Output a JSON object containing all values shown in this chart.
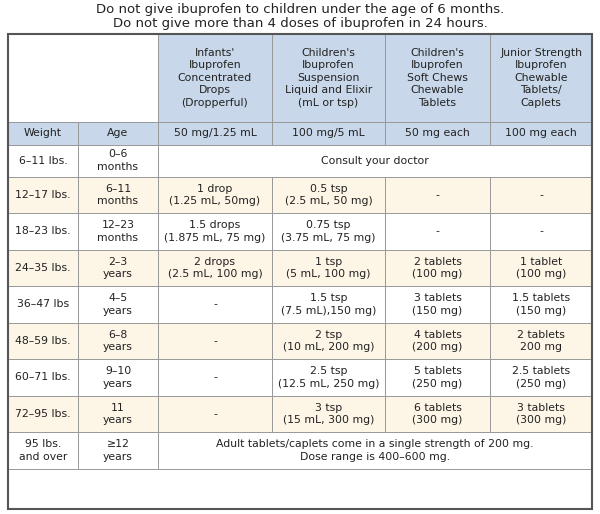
{
  "title_line1": "Do not give ibuprofen to children under the age of 6 months.",
  "title_line2": "Do not give more than 4 doses of ibuprofen in 24 hours.",
  "col_headers_top": [
    "Infants'\nIbuprofen\nConcentrated\nDrops\n(Dropperful)",
    "Children's\nIbuprofen\nSuspension\nLiquid and Elixir\n(mL or tsp)",
    "Children's\nIbuprofen\nSoft Chews\nChewable\nTablets",
    "Junior Strength\nIbuprofen\nChewable\nTablets/\nCaplets"
  ],
  "col_headers_sub": [
    "50 mg/1.25 mL",
    "100 mg/5 mL",
    "50 mg each",
    "100 mg each"
  ],
  "row_headers": [
    "Weight",
    "Age"
  ],
  "rows": [
    {
      "weight": "6–11 lbs.",
      "age": "0–6\nmonths",
      "span": true,
      "data": [
        "Consult your doctor",
        "",
        "",
        ""
      ]
    },
    {
      "weight": "12–17 lbs.",
      "age": "6–11\nmonths",
      "span": false,
      "data": [
        "1 drop\n(1.25 mL, 50mg)",
        "0.5 tsp\n(2.5 mL, 50 mg)",
        "-",
        "-"
      ]
    },
    {
      "weight": "18–23 lbs.",
      "age": "12–23\nmonths",
      "span": false,
      "data": [
        "1.5 drops\n(1.875 mL, 75 mg)",
        "0.75 tsp\n(3.75 mL, 75 mg)",
        "-",
        "-"
      ]
    },
    {
      "weight": "24–35 lbs.",
      "age": "2–3\nyears",
      "span": false,
      "data": [
        "2 drops\n(2.5 mL, 100 mg)",
        "1 tsp\n(5 mL, 100 mg)",
        "2 tablets\n(100 mg)",
        "1 tablet\n(100 mg)"
      ]
    },
    {
      "weight": "36–47 lbs",
      "age": "4–5\nyears",
      "span": false,
      "data": [
        "-",
        "1.5 tsp\n(7.5 mL),150 mg)",
        "3 tablets\n(150 mg)",
        "1.5 tablets\n(150 mg)"
      ]
    },
    {
      "weight": "48–59 lbs.",
      "age": "6–8\nyears",
      "span": false,
      "data": [
        "-",
        "2 tsp\n(10 mL, 200 mg)",
        "4 tablets\n(200 mg)",
        "2 tablets\n200 mg"
      ]
    },
    {
      "weight": "60–71 lbs.",
      "age": "9–10\nyears",
      "span": false,
      "data": [
        "-",
        "2.5 tsp\n(12.5 mL, 250 mg)",
        "5 tablets\n(250 mg)",
        "2.5 tablets\n(250 mg)"
      ]
    },
    {
      "weight": "72–95 lbs.",
      "age": "11\nyears",
      "span": false,
      "data": [
        "-",
        "3 tsp\n(15 mL, 300 mg)",
        "6 tablets\n(300 mg)",
        "3 tablets\n(300 mg)"
      ]
    },
    {
      "weight": "95 lbs.\nand over",
      "age": "≥12\nyears",
      "span": true,
      "data": [
        "Adult tablets/caplets come in a single strength of 200 mg.\nDose range is 400–600 mg.",
        "",
        "",
        ""
      ]
    }
  ],
  "header_bg": "#c8d8ea",
  "subheader_bg": "#c8d8ea",
  "white_bg": "#ffffff",
  "cream_bg": "#fdf5e6",
  "border_color": "#999999",
  "text_color": "#222222",
  "title_fontsize": 9.5,
  "header_fontsize": 7.8,
  "cell_fontsize": 7.8
}
